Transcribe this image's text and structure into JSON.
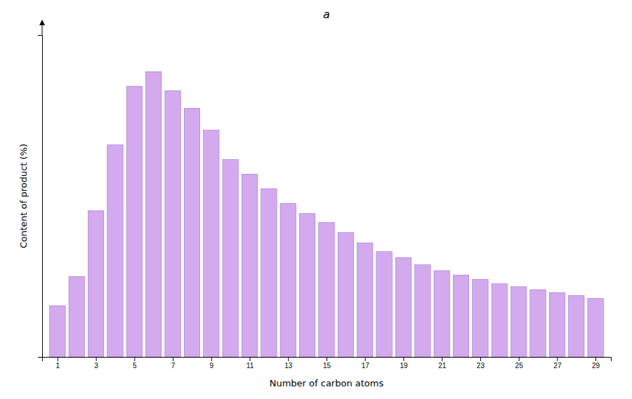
{
  "chart_data": {
    "type": "bar",
    "title": "a",
    "xlabel": "Number of carbon atoms",
    "ylabel": "Content of product (%)",
    "x": [
      1,
      2,
      3,
      4,
      5,
      6,
      7,
      8,
      9,
      10,
      11,
      12,
      13,
      14,
      15,
      16,
      17,
      18,
      19,
      20,
      21,
      22,
      23,
      24,
      25,
      26,
      27,
      28,
      29
    ],
    "values": [
      3.5,
      5.5,
      10.0,
      14.5,
      18.5,
      19.5,
      18.2,
      17.0,
      15.5,
      13.5,
      12.5,
      11.5,
      10.5,
      9.8,
      9.2,
      8.5,
      7.8,
      7.2,
      6.8,
      6.3,
      5.9,
      5.6,
      5.3,
      5.0,
      4.8,
      4.6,
      4.4,
      4.2,
      4.0
    ],
    "color": "#D4AAEE",
    "xlim": [
      0.2,
      29.8
    ],
    "xticks": [
      1,
      3,
      5,
      7,
      9,
      11,
      13,
      15,
      17,
      19,
      21,
      23,
      25,
      27,
      29
    ],
    "ylim": [
      0,
      22
    ],
    "tick_labels": "x",
    "grid": false
  }
}
